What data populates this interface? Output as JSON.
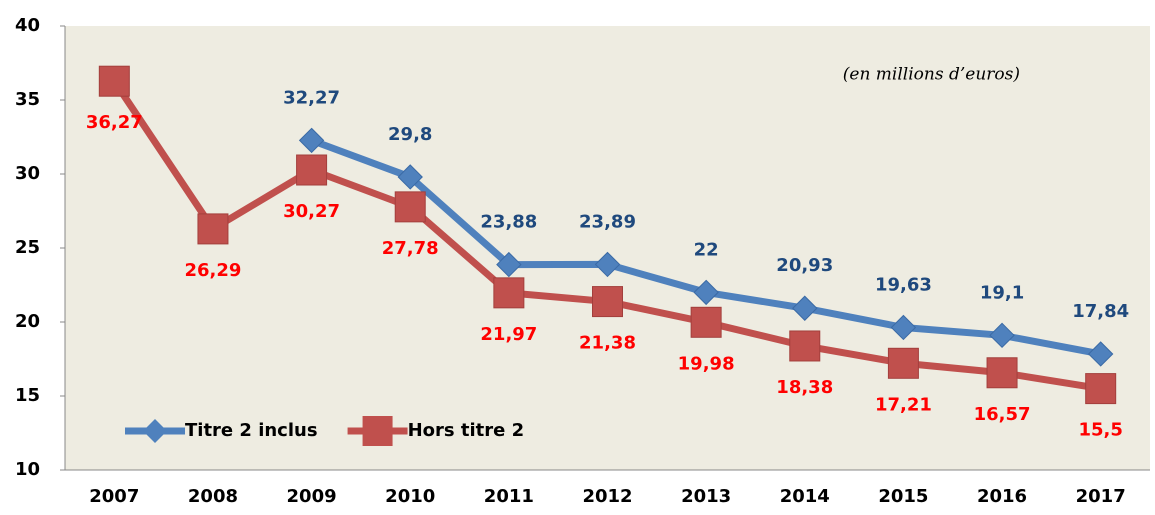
{
  "chart_data": {
    "type": "line",
    "annotation": "(en millions d’euros)",
    "categories": [
      "2007",
      "2008",
      "2009",
      "2010",
      "2011",
      "2012",
      "2013",
      "2014",
      "2015",
      "2016",
      "2017"
    ],
    "series": [
      {
        "name": "Titre 2 inclus",
        "color": "#4f81bd",
        "label_color": "#1f497d",
        "marker": "diamond",
        "values": [
          null,
          null,
          32.27,
          29.8,
          23.88,
          23.89,
          22,
          20.93,
          19.63,
          19.1,
          17.84
        ],
        "value_labels": [
          null,
          null,
          "32,27",
          "29,8",
          "23,88",
          "23,89",
          "22",
          "20,93",
          "19,63",
          "19,1",
          "17,84"
        ]
      },
      {
        "name": "Hors titre 2",
        "color": "#c0504d",
        "label_color": "#ff0000",
        "marker": "square",
        "values": [
          36.27,
          26.29,
          30.27,
          27.78,
          21.97,
          21.38,
          19.98,
          18.38,
          17.21,
          16.57,
          15.5
        ],
        "value_labels": [
          "36,27",
          "26,29",
          "30,27",
          "27,78",
          "21,97",
          "21,38",
          "19,98",
          "18,38",
          "17,21",
          "16,57",
          "15,5"
        ]
      }
    ],
    "ylim": [
      10,
      40
    ],
    "yticks": [
      10,
      15,
      20,
      25,
      30,
      35,
      40
    ],
    "grid": false,
    "legend": "lower left"
  }
}
